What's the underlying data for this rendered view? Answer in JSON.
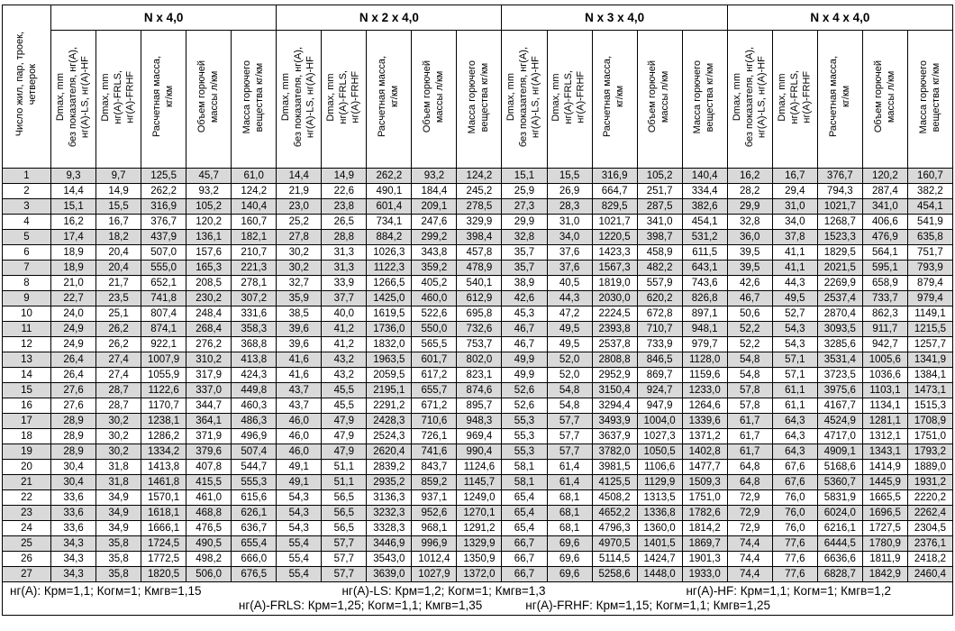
{
  "colors": {
    "shaded_row": "#d9d9d9",
    "border": "#000000",
    "text": "#000000",
    "background": "#ffffff"
  },
  "header": {
    "first_column_lines": [
      "Число жил, пар, троек,",
      "четверок"
    ],
    "groups": [
      "N x 4,0",
      "N x 2 x 4,0",
      "N x 3 x 4,0",
      "N x 4 x 4,0"
    ],
    "subcolumns": [
      [
        "Dmax, mm",
        "без показателя, нг(А),",
        "нг(А)-LS, нг(А)-HF"
      ],
      [
        "Dmax, mm",
        "нг(А)-FRLS,",
        "нг(А)-FRHF"
      ],
      [
        "Расчетная масса,",
        "кг/км"
      ],
      [
        "Объем горючей",
        "массы л/км"
      ],
      [
        "Масса горючего",
        "вещества кг/км"
      ]
    ]
  },
  "rows": [
    {
      "n": "1",
      "values": [
        "9,3",
        "9,7",
        "125,5",
        "45,7",
        "61,0",
        "14,4",
        "14,9",
        "262,2",
        "93,2",
        "124,2",
        "15,1",
        "15,5",
        "316,9",
        "105,2",
        "140,4",
        "16,2",
        "16,7",
        "376,7",
        "120,2",
        "160,7"
      ]
    },
    {
      "n": "2",
      "values": [
        "14,4",
        "14,9",
        "262,2",
        "93,2",
        "124,2",
        "21,9",
        "22,6",
        "490,1",
        "184,4",
        "245,2",
        "25,9",
        "26,9",
        "664,7",
        "251,7",
        "334,4",
        "28,2",
        "29,4",
        "794,3",
        "287,4",
        "382,2"
      ]
    },
    {
      "n": "3",
      "values": [
        "15,1",
        "15,5",
        "316,9",
        "105,2",
        "140,4",
        "23,0",
        "23,8",
        "601,4",
        "209,1",
        "278,5",
        "27,3",
        "28,3",
        "829,5",
        "287,5",
        "382,6",
        "29,9",
        "31,0",
        "1021,7",
        "341,0",
        "454,1"
      ]
    },
    {
      "n": "4",
      "values": [
        "16,2",
        "16,7",
        "376,7",
        "120,2",
        "160,7",
        "25,2",
        "26,5",
        "734,1",
        "247,6",
        "329,9",
        "29,9",
        "31,0",
        "1021,7",
        "341,0",
        "454,1",
        "32,8",
        "34,0",
        "1268,7",
        "406,6",
        "541,9"
      ]
    },
    {
      "n": "5",
      "values": [
        "17,4",
        "18,2",
        "437,9",
        "136,1",
        "182,1",
        "27,8",
        "28,8",
        "884,2",
        "299,2",
        "398,4",
        "32,8",
        "34,0",
        "1220,5",
        "398,7",
        "531,2",
        "36,0",
        "37,8",
        "1523,3",
        "476,9",
        "635,8"
      ]
    },
    {
      "n": "6",
      "values": [
        "18,9",
        "20,4",
        "507,0",
        "157,6",
        "210,7",
        "30,2",
        "31,3",
        "1026,3",
        "343,8",
        "457,8",
        "35,7",
        "37,6",
        "1423,3",
        "458,9",
        "611,5",
        "39,5",
        "41,1",
        "1829,5",
        "564,1",
        "751,7"
      ]
    },
    {
      "n": "7",
      "values": [
        "18,9",
        "20,4",
        "555,0",
        "165,3",
        "221,3",
        "30,2",
        "31,3",
        "1122,3",
        "359,2",
        "478,9",
        "35,7",
        "37,6",
        "1567,3",
        "482,2",
        "643,1",
        "39,5",
        "41,1",
        "2021,5",
        "595,1",
        "793,9"
      ]
    },
    {
      "n": "8",
      "values": [
        "21,0",
        "21,7",
        "652,1",
        "208,5",
        "278,1",
        "32,7",
        "33,9",
        "1266,5",
        "405,2",
        "540,1",
        "38,9",
        "40,5",
        "1819,0",
        "557,9",
        "743,6",
        "42,6",
        "44,3",
        "2269,9",
        "658,9",
        "879,4"
      ]
    },
    {
      "n": "9",
      "values": [
        "22,7",
        "23,5",
        "741,8",
        "230,2",
        "307,2",
        "35,9",
        "37,7",
        "1425,0",
        "460,0",
        "612,9",
        "42,6",
        "44,3",
        "2030,0",
        "620,2",
        "826,8",
        "46,7",
        "49,5",
        "2537,4",
        "733,7",
        "979,4"
      ]
    },
    {
      "n": "10",
      "values": [
        "24,0",
        "25,1",
        "807,4",
        "248,4",
        "331,6",
        "38,5",
        "40,0",
        "1619,5",
        "522,6",
        "695,8",
        "45,3",
        "47,2",
        "2224,5",
        "672,8",
        "897,1",
        "50,6",
        "52,7",
        "2870,4",
        "862,3",
        "1149,1"
      ]
    },
    {
      "n": "11",
      "values": [
        "24,9",
        "26,2",
        "874,1",
        "268,4",
        "358,3",
        "39,6",
        "41,2",
        "1736,0",
        "550,0",
        "732,6",
        "46,7",
        "49,5",
        "2393,8",
        "710,7",
        "948,1",
        "52,2",
        "54,3",
        "3093,5",
        "911,7",
        "1215,5"
      ]
    },
    {
      "n": "12",
      "values": [
        "24,9",
        "26,2",
        "922,1",
        "276,2",
        "368,8",
        "39,6",
        "41,2",
        "1832,0",
        "565,5",
        "753,7",
        "46,7",
        "49,5",
        "2537,8",
        "733,9",
        "979,7",
        "52,2",
        "54,3",
        "3285,6",
        "942,7",
        "1257,7"
      ]
    },
    {
      "n": "13",
      "values": [
        "26,4",
        "27,4",
        "1007,9",
        "310,2",
        "413,8",
        "41,6",
        "43,2",
        "1963,5",
        "601,7",
        "802,0",
        "49,9",
        "52,0",
        "2808,8",
        "846,5",
        "1128,0",
        "54,8",
        "57,1",
        "3531,4",
        "1005,6",
        "1341,9"
      ]
    },
    {
      "n": "14",
      "values": [
        "26,4",
        "27,4",
        "1055,9",
        "317,9",
        "424,3",
        "41,6",
        "43,2",
        "2059,5",
        "617,2",
        "823,1",
        "49,9",
        "52,0",
        "2952,9",
        "869,7",
        "1159,6",
        "54,8",
        "57,1",
        "3723,5",
        "1036,6",
        "1384,1"
      ]
    },
    {
      "n": "15",
      "values": [
        "27,6",
        "28,7",
        "1122,6",
        "337,0",
        "449,8",
        "43,7",
        "45,5",
        "2195,1",
        "655,7",
        "874,6",
        "52,6",
        "54,8",
        "3150,4",
        "924,7",
        "1233,0",
        "57,8",
        "61,1",
        "3975,6",
        "1103,1",
        "1473,1"
      ]
    },
    {
      "n": "16",
      "values": [
        "27,6",
        "28,7",
        "1170,7",
        "344,7",
        "460,3",
        "43,7",
        "45,5",
        "2291,2",
        "671,2",
        "895,7",
        "52,6",
        "54,8",
        "3294,4",
        "947,9",
        "1264,6",
        "57,8",
        "61,1",
        "4167,7",
        "1134,1",
        "1515,3"
      ]
    },
    {
      "n": "17",
      "values": [
        "28,9",
        "30,2",
        "1238,1",
        "364,1",
        "486,3",
        "46,0",
        "47,9",
        "2428,3",
        "710,6",
        "948,3",
        "55,3",
        "57,7",
        "3493,9",
        "1004,0",
        "1339,6",
        "61,7",
        "64,3",
        "4524,9",
        "1281,1",
        "1708,9"
      ]
    },
    {
      "n": "18",
      "values": [
        "28,9",
        "30,2",
        "1286,2",
        "371,9",
        "496,9",
        "46,0",
        "47,9",
        "2524,3",
        "726,1",
        "969,4",
        "55,3",
        "57,7",
        "3637,9",
        "1027,3",
        "1371,2",
        "61,7",
        "64,3",
        "4717,0",
        "1312,1",
        "1751,0"
      ]
    },
    {
      "n": "19",
      "values": [
        "28,9",
        "30,2",
        "1334,2",
        "379,6",
        "507,4",
        "46,0",
        "47,9",
        "2620,4",
        "741,6",
        "990,4",
        "55,3",
        "57,7",
        "3782,0",
        "1050,5",
        "1402,8",
        "61,7",
        "64,3",
        "4909,1",
        "1343,1",
        "1793,2"
      ]
    },
    {
      "n": "20",
      "values": [
        "30,4",
        "31,8",
        "1413,8",
        "407,8",
        "544,7",
        "49,1",
        "51,1",
        "2839,2",
        "843,7",
        "1124,6",
        "58,1",
        "61,4",
        "3981,5",
        "1106,6",
        "1477,7",
        "64,8",
        "67,6",
        "5168,6",
        "1414,9",
        "1889,0"
      ]
    },
    {
      "n": "21",
      "values": [
        "30,4",
        "31,8",
        "1461,8",
        "415,5",
        "555,3",
        "49,1",
        "51,1",
        "2935,2",
        "859,2",
        "1145,7",
        "58,1",
        "61,4",
        "4125,5",
        "1129,9",
        "1509,3",
        "64,8",
        "67,6",
        "5360,7",
        "1445,9",
        "1931,2"
      ]
    },
    {
      "n": "22",
      "values": [
        "33,6",
        "34,9",
        "1570,1",
        "461,0",
        "615,6",
        "54,3",
        "56,5",
        "3136,3",
        "937,1",
        "1249,0",
        "65,4",
        "68,1",
        "4508,2",
        "1313,5",
        "1751,0",
        "72,9",
        "76,0",
        "5831,9",
        "1665,5",
        "2220,2"
      ]
    },
    {
      "n": "23",
      "values": [
        "33,6",
        "34,9",
        "1618,1",
        "468,8",
        "626,1",
        "54,3",
        "56,5",
        "3232,3",
        "952,6",
        "1270,1",
        "65,4",
        "68,1",
        "4652,2",
        "1336,8",
        "1782,6",
        "72,9",
        "76,0",
        "6024,0",
        "1696,5",
        "2262,4"
      ]
    },
    {
      "n": "24",
      "values": [
        "33,6",
        "34,9",
        "1666,1",
        "476,5",
        "636,7",
        "54,3",
        "56,5",
        "3328,3",
        "968,1",
        "1291,2",
        "65,4",
        "68,1",
        "4796,3",
        "1360,0",
        "1814,2",
        "72,9",
        "76,0",
        "6216,1",
        "1727,5",
        "2304,5"
      ]
    },
    {
      "n": "25",
      "values": [
        "34,3",
        "35,8",
        "1724,5",
        "490,5",
        "655,4",
        "55,4",
        "57,7",
        "3446,9",
        "996,9",
        "1329,9",
        "66,7",
        "69,6",
        "4970,5",
        "1401,5",
        "1869,7",
        "74,4",
        "77,6",
        "6444,5",
        "1780,9",
        "2376,1"
      ]
    },
    {
      "n": "26",
      "values": [
        "34,3",
        "35,8",
        "1772,5",
        "498,2",
        "666,0",
        "55,4",
        "57,7",
        "3543,0",
        "1012,4",
        "1350,9",
        "66,7",
        "69,6",
        "5114,5",
        "1424,7",
        "1901,3",
        "74,4",
        "77,6",
        "6636,6",
        "1811,9",
        "2418,2"
      ]
    },
    {
      "n": "27",
      "values": [
        "34,3",
        "35,8",
        "1820,5",
        "506,0",
        "676,5",
        "55,4",
        "57,7",
        "3639,0",
        "1027,9",
        "1372,0",
        "66,7",
        "69,6",
        "5258,6",
        "1448,0",
        "1933,0",
        "74,4",
        "77,6",
        "6828,7",
        "1842,9",
        "2460,4"
      ]
    }
  ],
  "footnotes": {
    "line1": [
      "нг(А): Крм=1,1; Когм=1; Кмгв=1,15",
      "нг(А)-LS: Крм=1,2; Когм=1; Кмгв=1,3",
      "нг(А)-HF: Крм=1,1; Когм=1; Кмгв=1,2"
    ],
    "line2": [
      "нг(А)-FRLS: Крм=1,25; Когм=1,1; Кмгв=1,35",
      "нг(А)-FRHF: Крм=1,15; Когм=1,1; Кмгв=1,25"
    ]
  }
}
